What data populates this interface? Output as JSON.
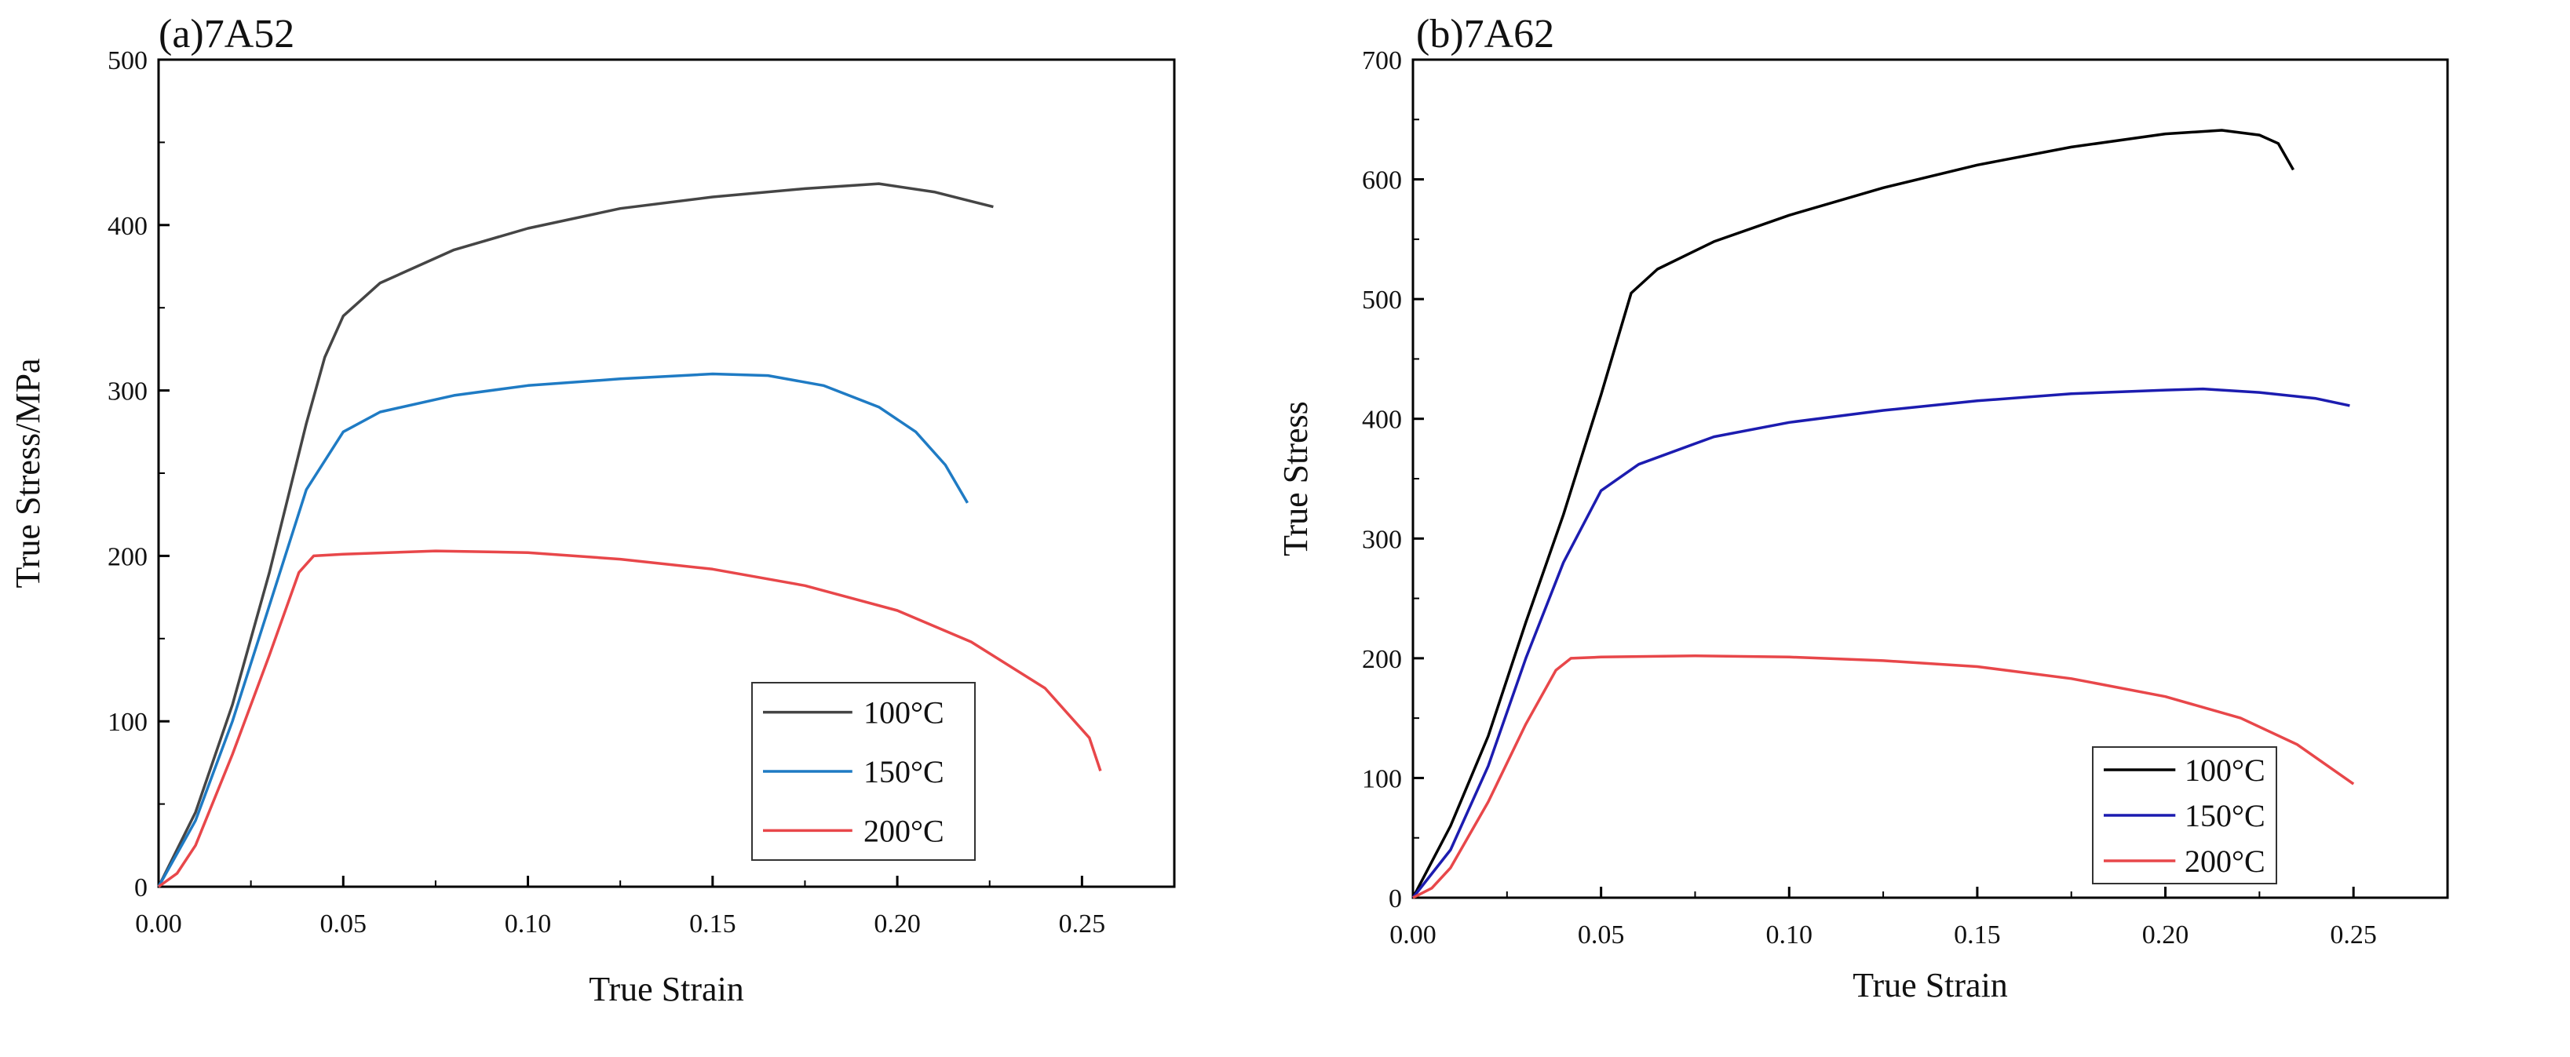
{
  "chart_data": [
    {
      "type": "line",
      "title": "(a)7A52",
      "xlabel": "True Strain",
      "ylabel": "True Stress/MPa",
      "xlim": [
        0,
        0.275
      ],
      "ylim": [
        0,
        500
      ],
      "xticks": [
        "0.00",
        "0.05",
        "0.10",
        "0.15",
        "0.20",
        "0.25"
      ],
      "yticks": [
        "0",
        "100",
        "200",
        "300",
        "400",
        "500"
      ],
      "legend_position": "bottom-right",
      "series": [
        {
          "name": "100°C",
          "color": "#454545",
          "points": [
            [
              0,
              0
            ],
            [
              0.01,
              45
            ],
            [
              0.02,
              110
            ],
            [
              0.03,
              190
            ],
            [
              0.04,
              280
            ],
            [
              0.045,
              320
            ],
            [
              0.05,
              345
            ],
            [
              0.06,
              365
            ],
            [
              0.08,
              385
            ],
            [
              0.1,
              398
            ],
            [
              0.125,
              410
            ],
            [
              0.15,
              417
            ],
            [
              0.175,
              422
            ],
            [
              0.195,
              425
            ],
            [
              0.21,
              420
            ],
            [
              0.226,
              411
            ]
          ]
        },
        {
          "name": "150°C",
          "color": "#1f7bc4",
          "points": [
            [
              0,
              0
            ],
            [
              0.01,
              40
            ],
            [
              0.02,
              100
            ],
            [
              0.03,
              170
            ],
            [
              0.04,
              240
            ],
            [
              0.05,
              275
            ],
            [
              0.06,
              287
            ],
            [
              0.08,
              297
            ],
            [
              0.1,
              303
            ],
            [
              0.125,
              307
            ],
            [
              0.15,
              310
            ],
            [
              0.165,
              309
            ],
            [
              0.18,
              303
            ],
            [
              0.195,
              290
            ],
            [
              0.205,
              275
            ],
            [
              0.213,
              255
            ],
            [
              0.219,
              232
            ]
          ]
        },
        {
          "name": "200°C",
          "color": "#e8474a",
          "points": [
            [
              0,
              0
            ],
            [
              0.005,
              8
            ],
            [
              0.01,
              25
            ],
            [
              0.02,
              80
            ],
            [
              0.03,
              140
            ],
            [
              0.038,
              190
            ],
            [
              0.042,
              200
            ],
            [
              0.05,
              201
            ],
            [
              0.075,
              203
            ],
            [
              0.1,
              202
            ],
            [
              0.125,
              198
            ],
            [
              0.15,
              192
            ],
            [
              0.175,
              182
            ],
            [
              0.2,
              167
            ],
            [
              0.22,
              148
            ],
            [
              0.24,
              120
            ],
            [
              0.252,
              90
            ],
            [
              0.255,
              70
            ]
          ]
        }
      ]
    },
    {
      "type": "line",
      "title": "(b)7A62",
      "xlabel": "True Strain",
      "ylabel": "True Stress",
      "xlim": [
        0,
        0.275
      ],
      "ylim": [
        0,
        700
      ],
      "xticks": [
        "0.00",
        "0.05",
        "0.10",
        "0.15",
        "0.20",
        "0.25"
      ],
      "yticks": [
        "0",
        "100",
        "200",
        "300",
        "400",
        "500",
        "600",
        "700"
      ],
      "legend_position": "bottom-right",
      "series": [
        {
          "name": "100°C",
          "color": "#000000",
          "points": [
            [
              0,
              0
            ],
            [
              0.01,
              60
            ],
            [
              0.02,
              135
            ],
            [
              0.03,
              230
            ],
            [
              0.04,
              320
            ],
            [
              0.05,
              420
            ],
            [
              0.058,
              505
            ],
            [
              0.065,
              525
            ],
            [
              0.08,
              548
            ],
            [
              0.1,
              570
            ],
            [
              0.125,
              593
            ],
            [
              0.15,
              612
            ],
            [
              0.175,
              627
            ],
            [
              0.2,
              638
            ],
            [
              0.215,
              641
            ],
            [
              0.225,
              637
            ],
            [
              0.23,
              630
            ],
            [
              0.234,
              608
            ]
          ]
        },
        {
          "name": "150°C",
          "color": "#1c1cb0",
          "points": [
            [
              0,
              0
            ],
            [
              0.01,
              40
            ],
            [
              0.02,
              110
            ],
            [
              0.03,
              200
            ],
            [
              0.04,
              280
            ],
            [
              0.05,
              340
            ],
            [
              0.06,
              362
            ],
            [
              0.08,
              385
            ],
            [
              0.1,
              397
            ],
            [
              0.125,
              407
            ],
            [
              0.15,
              415
            ],
            [
              0.175,
              421
            ],
            [
              0.2,
              424
            ],
            [
              0.21,
              425
            ],
            [
              0.225,
              422
            ],
            [
              0.24,
              417
            ],
            [
              0.249,
              411
            ]
          ]
        },
        {
          "name": "200°C",
          "color": "#e8474a",
          "points": [
            [
              0,
              0
            ],
            [
              0.005,
              8
            ],
            [
              0.01,
              25
            ],
            [
              0.02,
              80
            ],
            [
              0.03,
              145
            ],
            [
              0.038,
              190
            ],
            [
              0.042,
              200
            ],
            [
              0.05,
              201
            ],
            [
              0.075,
              202
            ],
            [
              0.1,
              201
            ],
            [
              0.125,
              198
            ],
            [
              0.15,
              193
            ],
            [
              0.175,
              183
            ],
            [
              0.2,
              168
            ],
            [
              0.22,
              150
            ],
            [
              0.235,
              128
            ],
            [
              0.25,
              95
            ]
          ]
        }
      ]
    }
  ]
}
